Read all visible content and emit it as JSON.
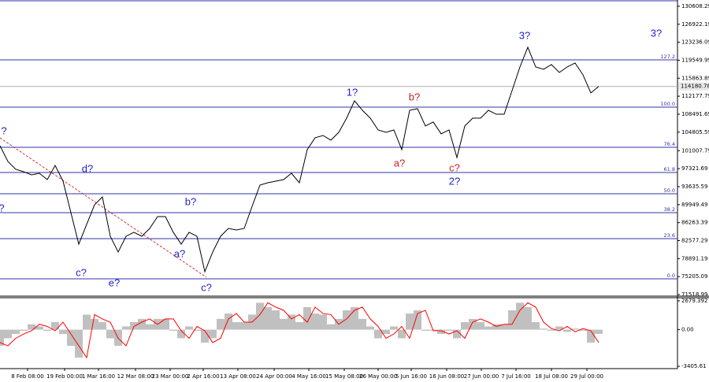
{
  "chart_data": [
    {
      "type": "line",
      "color": "#000000",
      "values": [
        102030,
        98800,
        97190,
        96700,
        96060,
        96380,
        95090,
        97990,
        94770,
        88310,
        81860,
        85890,
        89920,
        91540,
        83470,
        80250,
        83470,
        84280,
        83470,
        85080,
        87500,
        87500,
        84280,
        81860,
        84280,
        83470,
        76210,
        80250,
        83470,
        85080,
        84760,
        85080,
        89600,
        93960,
        94440,
        94770,
        95090,
        96380,
        94440,
        101220,
        103650,
        104130,
        103160,
        104770,
        107680,
        111230,
        109290,
        107680,
        105260,
        104770,
        105260,
        101220,
        109290,
        109620,
        106070,
        106880,
        104460,
        105260,
        99610,
        106070,
        107680,
        107680,
        109290,
        108480,
        108480,
        113330,
        118170,
        122200,
        118170,
        117690,
        118660,
        117040,
        118170,
        118980,
        116560,
        112850,
        114180
      ],
      "xlim": [
        0,
        86
      ],
      "xticks": [
        {
          "value": 3.5,
          "label": "8 Feb 08:00"
        },
        {
          "value": 8.2,
          "label": "19 Feb 00:00"
        },
        {
          "value": 12.5,
          "label": "1 Mar 16:00"
        },
        {
          "value": 17.2,
          "label": "12 Mar 08:00"
        },
        {
          "value": 21.6,
          "label": "23 Mar 00:00"
        },
        {
          "value": 25.8,
          "label": "2 Apr 16:00"
        },
        {
          "value": 30.2,
          "label": "13 Apr 08:00"
        },
        {
          "value": 34.8,
          "label": "24 Apr 00:00"
        },
        {
          "value": 39.2,
          "label": "4 May 16:00"
        },
        {
          "value": 43.7,
          "label": "15 May 08:00"
        },
        {
          "value": 48.0,
          "label": "26 May 00:00"
        },
        {
          "value": 52.2,
          "label": "5 Jun 16:00"
        },
        {
          "value": 56.7,
          "label": "16 Jun 08:00"
        },
        {
          "value": 61.1,
          "label": "27 Jun 00:00"
        },
        {
          "value": 65.5,
          "label": "7 Jul 16:00"
        },
        {
          "value": 70.0,
          "label": "18 Jul 08:00"
        },
        {
          "value": 74.5,
          "label": "29 Jul 00:00"
        }
      ],
      "ylim": [
        71360,
        131890
      ],
      "yticks": [
        130608.29,
        126922.19,
        123236.09,
        119549.99,
        115863.89,
        112177.79,
        108491.69,
        104805.59,
        101007.79,
        97321.69,
        93635.59,
        89949.49,
        86263.39,
        82577.29,
        78891.19,
        75205.09,
        71518.99
      ],
      "last_value": 114180.78,
      "fib_levels": [
        {
          "label": "127.2",
          "price": 119620
        },
        {
          "label": "100.0",
          "price": 109940
        },
        {
          "label": "76.4",
          "price": 101710
        },
        {
          "label": "61.8",
          "price": 96540
        },
        {
          "label": "50.0",
          "price": 92190
        },
        {
          "label": "38.2",
          "price": 88310
        },
        {
          "label": "23.6",
          "price": 82990
        },
        {
          "label": "0.0",
          "price": 74750
        }
      ],
      "annotations": [
        {
          "text": "?",
          "color": "#1f1fcf"
        },
        {
          "text": "?",
          "color": "#1f1fcf"
        },
        {
          "text": "d?",
          "color": "#1f1fcf"
        },
        {
          "text": "c?",
          "color": "#1f1fcf"
        },
        {
          "text": "e?",
          "color": "#1f1fcf"
        },
        {
          "text": "b?",
          "color": "#1f1fcf"
        },
        {
          "text": "a?",
          "color": "#1f1fcf"
        },
        {
          "text": "c?",
          "color": "#1f1fcf"
        },
        {
          "text": "1?",
          "color": "#1f1fcf"
        },
        {
          "text": "b?",
          "color": "#d02020"
        },
        {
          "text": "a?",
          "color": "#d02020"
        },
        {
          "text": "c?",
          "color": "#d02020"
        },
        {
          "text": "2?",
          "color": "#1f1fcf"
        },
        {
          "text": "3?",
          "color": "#1f1fcf"
        },
        {
          "text": "3?",
          "color": "#1f1fcf"
        }
      ]
    },
    {
      "type": "bar",
      "xlim": [
        0,
        86
      ],
      "ylim": [
        -3620,
        2970
      ],
      "yticks": [
        2679.392,
        {
          "value": 0,
          "label": "0.00"
        },
        -3405.61
      ],
      "series": [
        {
          "type": "bar",
          "color": "#c0c0c0",
          "values": [
            -1500,
            -800,
            -400,
            -100,
            500,
            300,
            -100,
            700,
            -400,
            -1500,
            -2600,
            1400,
            1000,
            700,
            -800,
            -1500,
            300,
            700,
            1000,
            500,
            1000,
            1000,
            -100,
            -800,
            300,
            -100,
            -1200,
            -800,
            1000,
            1500,
            700,
            700,
            1400,
            2500,
            2100,
            1800,
            1000,
            1400,
            700,
            2100,
            1500,
            1400,
            500,
            1000,
            1800,
            2100,
            1000,
            300,
            -800,
            -400,
            300,
            -800,
            1500,
            1800,
            -100,
            -100,
            -400,
            -100,
            -800,
            700,
            1000,
            700,
            300,
            500,
            500,
            1800,
            2500,
            2100,
            700,
            100,
            -100,
            300,
            -200,
            100,
            -100,
            -1200,
            -400
          ]
        },
        {
          "type": "line",
          "color": "#ff0000",
          "values": [
            -1200,
            -1500,
            -800,
            -400,
            -100,
            500,
            300,
            -100,
            700,
            -400,
            -1500,
            -2600,
            1400,
            1000,
            700,
            -800,
            -1500,
            300,
            700,
            1000,
            500,
            1000,
            1000,
            -100,
            -800,
            300,
            -100,
            -1200,
            -800,
            1000,
            1500,
            700,
            700,
            1400,
            2500,
            2100,
            1800,
            1000,
            1400,
            700,
            2100,
            1500,
            1400,
            500,
            1000,
            1800,
            2100,
            1000,
            300,
            -800,
            -400,
            300,
            -800,
            1500,
            1800,
            -100,
            -100,
            -400,
            -100,
            -800,
            700,
            1000,
            700,
            300,
            500,
            500,
            1800,
            2500,
            2100,
            700,
            100,
            -100,
            300,
            -200,
            100,
            -100,
            -1200
          ]
        }
      ]
    }
  ]
}
